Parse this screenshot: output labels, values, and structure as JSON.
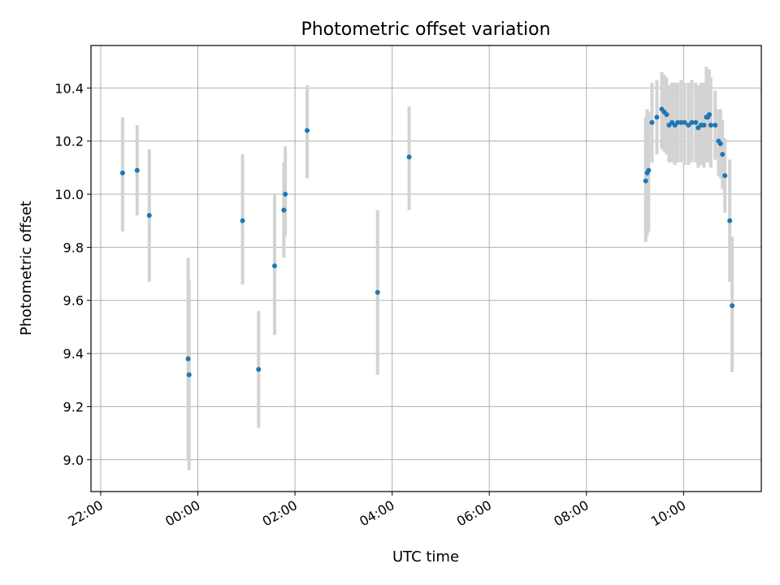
{
  "chart_data": {
    "type": "scatter",
    "title": "Photometric offset variation",
    "xlabel": "UTC time",
    "ylabel": "Photometric offset",
    "x_unit": "hours",
    "xlim": [
      -2.2,
      11.6
    ],
    "ylim": [
      8.88,
      10.56
    ],
    "x_ticks": [
      {
        "value": -2,
        "label": "22:00"
      },
      {
        "value": 0,
        "label": "00:00"
      },
      {
        "value": 2,
        "label": "02:00"
      },
      {
        "value": 4,
        "label": "04:00"
      },
      {
        "value": 6,
        "label": "06:00"
      },
      {
        "value": 8,
        "label": "08:00"
      },
      {
        "value": 10,
        "label": "10:00"
      }
    ],
    "y_ticks": [
      {
        "value": 9.0,
        "label": "9.0"
      },
      {
        "value": 9.2,
        "label": "9.2"
      },
      {
        "value": 9.4,
        "label": "9.4"
      },
      {
        "value": 9.6,
        "label": "9.6"
      },
      {
        "value": 9.8,
        "label": "9.8"
      },
      {
        "value": 10.0,
        "label": "10.0"
      },
      {
        "value": 10.2,
        "label": "10.2"
      },
      {
        "value": 10.4,
        "label": "10.4"
      }
    ],
    "grid": true,
    "point_color": "#1f77b4",
    "errorbar_color": "#d3d3d3",
    "series": [
      {
        "points": [
          {
            "x": -1.55,
            "y": 10.08,
            "lo": 9.86,
            "hi": 10.29
          },
          {
            "x": -1.25,
            "y": 10.09,
            "lo": 9.92,
            "hi": 10.26
          },
          {
            "x": -1.0,
            "y": 9.92,
            "lo": 9.67,
            "hi": 10.17
          },
          {
            "x": -0.2,
            "y": 9.38,
            "lo": 9.0,
            "hi": 9.76
          },
          {
            "x": -0.18,
            "y": 9.32,
            "lo": 8.96,
            "hi": 9.68
          },
          {
            "x": 0.92,
            "y": 9.9,
            "lo": 9.66,
            "hi": 10.15
          },
          {
            "x": 1.25,
            "y": 9.34,
            "lo": 9.12,
            "hi": 9.56
          },
          {
            "x": 1.58,
            "y": 9.73,
            "lo": 9.47,
            "hi": 10.0
          },
          {
            "x": 1.77,
            "y": 9.94,
            "lo": 9.76,
            "hi": 10.12
          },
          {
            "x": 1.8,
            "y": 10.0,
            "lo": 9.84,
            "hi": 10.18
          },
          {
            "x": 2.25,
            "y": 10.24,
            "lo": 10.06,
            "hi": 10.41
          },
          {
            "x": 3.7,
            "y": 9.63,
            "lo": 9.32,
            "hi": 9.94
          },
          {
            "x": 4.35,
            "y": 10.14,
            "lo": 9.94,
            "hi": 10.33
          },
          {
            "x": 9.22,
            "y": 10.05,
            "lo": 9.82,
            "hi": 10.29
          },
          {
            "x": 9.25,
            "y": 10.08,
            "lo": 9.84,
            "hi": 10.32
          },
          {
            "x": 9.28,
            "y": 10.09,
            "lo": 9.86,
            "hi": 10.31
          },
          {
            "x": 9.35,
            "y": 10.27,
            "lo": 10.12,
            "hi": 10.42
          },
          {
            "x": 9.45,
            "y": 10.29,
            "lo": 10.15,
            "hi": 10.43
          },
          {
            "x": 9.55,
            "y": 10.32,
            "lo": 10.17,
            "hi": 10.46
          },
          {
            "x": 9.6,
            "y": 10.31,
            "lo": 10.16,
            "hi": 10.45
          },
          {
            "x": 9.65,
            "y": 10.3,
            "lo": 10.15,
            "hi": 10.44
          },
          {
            "x": 9.7,
            "y": 10.26,
            "lo": 10.12,
            "hi": 10.41
          },
          {
            "x": 9.76,
            "y": 10.27,
            "lo": 10.12,
            "hi": 10.42
          },
          {
            "x": 9.82,
            "y": 10.26,
            "lo": 10.11,
            "hi": 10.42
          },
          {
            "x": 9.88,
            "y": 10.27,
            "lo": 10.12,
            "hi": 10.42
          },
          {
            "x": 9.95,
            "y": 10.27,
            "lo": 10.12,
            "hi": 10.43
          },
          {
            "x": 10.02,
            "y": 10.27,
            "lo": 10.11,
            "hi": 10.42
          },
          {
            "x": 10.1,
            "y": 10.26,
            "lo": 10.11,
            "hi": 10.42
          },
          {
            "x": 10.17,
            "y": 10.27,
            "lo": 10.12,
            "hi": 10.43
          },
          {
            "x": 10.25,
            "y": 10.27,
            "lo": 10.12,
            "hi": 10.42
          },
          {
            "x": 10.3,
            "y": 10.25,
            "lo": 10.1,
            "hi": 10.41
          },
          {
            "x": 10.36,
            "y": 10.26,
            "lo": 10.11,
            "hi": 10.42
          },
          {
            "x": 10.42,
            "y": 10.26,
            "lo": 10.1,
            "hi": 10.42
          },
          {
            "x": 10.47,
            "y": 10.29,
            "lo": 10.12,
            "hi": 10.48
          },
          {
            "x": 10.5,
            "y": 10.29,
            "lo": 10.12,
            "hi": 10.46
          },
          {
            "x": 10.53,
            "y": 10.3,
            "lo": 10.14,
            "hi": 10.47
          },
          {
            "x": 10.56,
            "y": 10.26,
            "lo": 10.1,
            "hi": 10.44
          },
          {
            "x": 10.65,
            "y": 10.26,
            "lo": 10.13,
            "hi": 10.39
          },
          {
            "x": 10.72,
            "y": 10.2,
            "lo": 10.07,
            "hi": 10.32
          },
          {
            "x": 10.76,
            "y": 10.19,
            "lo": 10.06,
            "hi": 10.32
          },
          {
            "x": 10.8,
            "y": 10.15,
            "lo": 10.02,
            "hi": 10.28
          },
          {
            "x": 10.85,
            "y": 10.07,
            "lo": 9.93,
            "hi": 10.21
          },
          {
            "x": 10.95,
            "y": 9.9,
            "lo": 9.67,
            "hi": 10.13
          },
          {
            "x": 11.0,
            "y": 9.58,
            "lo": 9.33,
            "hi": 9.84
          }
        ]
      }
    ]
  }
}
